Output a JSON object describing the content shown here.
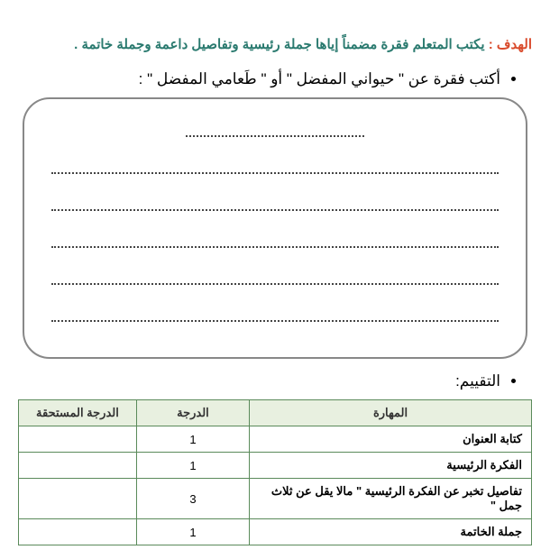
{
  "goal": {
    "label": "الهدف :",
    "text": "يكتب المتعلم فقرة مضمناً إياها جملة رئيسية وتفاصيل داعمة وجملة خاتمة  ."
  },
  "prompt": {
    "text": "أكتب فقرة عن \" حيواني المفضل \" أو \" طَعامي المفضل \" :"
  },
  "writing_box": {
    "line_count": 6,
    "border_color": "#888",
    "border_radius": 30
  },
  "assessment": {
    "title": "التقييم:",
    "columns": {
      "skill": "المهارة",
      "score": "الدرجة",
      "earned": "الدرجة المستحقة"
    },
    "rows": [
      {
        "skill": "كتابة العنوان",
        "score": "1",
        "earned": ""
      },
      {
        "skill": "الفكرة الرئيسية",
        "score": "1",
        "earned": ""
      },
      {
        "skill": "تفاصيل تخبر عن الفكرة الرئيسية \" مالا يقل عن ثلاث جمل \"",
        "score": "3",
        "earned": ""
      },
      {
        "skill": "جملة الخاتمة",
        "score": "1",
        "earned": ""
      }
    ],
    "colors": {
      "header_bg": "#e8f0e0",
      "border": "#5a8a5a"
    }
  }
}
